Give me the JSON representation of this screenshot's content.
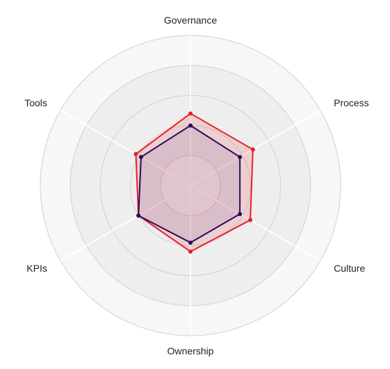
{
  "chart_data": {
    "type": "radar",
    "categories": [
      "Governance",
      "Process",
      "Culture",
      "Ownership",
      "KPIs",
      "Tools"
    ],
    "rlim": [
      0,
      5
    ],
    "ring_count": 5,
    "grid": true,
    "legend": "none",
    "series": [
      {
        "values": [
          2.4,
          2.4,
          2.3,
          2.2,
          2.0,
          2.1
        ],
        "color": "#e8202a",
        "fill": "#e8202a"
      },
      {
        "values": [
          2.0,
          1.9,
          1.9,
          1.9,
          2.0,
          1.9
        ],
        "color": "#2a0a5e",
        "fill": "#6a5a9a"
      }
    ],
    "colors": {
      "ring_fill_outer": "#f7f7f7",
      "ring_fill_inner": "#eeeeee",
      "ring_stroke": "#d0d0d0",
      "spoke": "#ffffff"
    }
  }
}
